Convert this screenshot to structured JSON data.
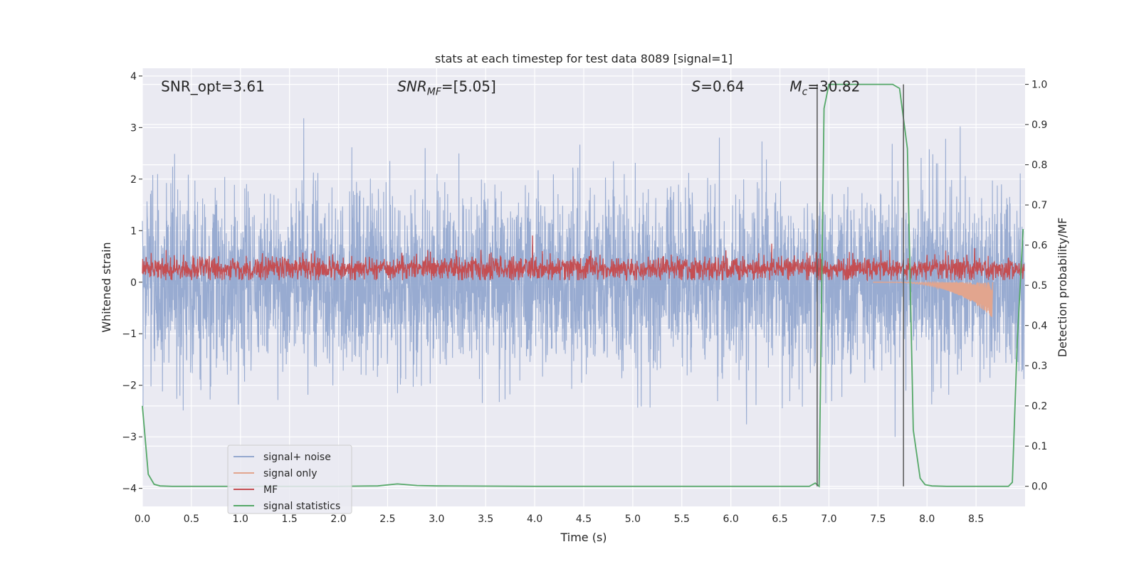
{
  "chart_data": {
    "type": "line",
    "title": "stats at each timestep for test data 8089 [signal=1]",
    "xlabel": "Time (s)",
    "ylabel": "Whitened strain",
    "ylabel_right": "Detection probability/MF",
    "xlim": [
      0,
      9.0
    ],
    "ylim": [
      -4.35,
      4.15
    ],
    "ylim_right": [
      -0.05,
      1.04
    ],
    "grid": true,
    "legend_position": "lower-left",
    "x_ticks": [
      0.0,
      0.5,
      1.0,
      1.5,
      2.0,
      2.5,
      3.0,
      3.5,
      4.0,
      4.5,
      5.0,
      5.5,
      6.0,
      6.5,
      7.0,
      7.5,
      8.0,
      8.5
    ],
    "x_tick_labels": [
      "0.0",
      "0.5",
      "1.0",
      "1.5",
      "2.0",
      "2.5",
      "3.0",
      "3.5",
      "4.0",
      "4.5",
      "5.0",
      "5.5",
      "6.0",
      "6.5",
      "7.0",
      "7.5",
      "8.0",
      "8.5"
    ],
    "y_ticks": [
      -4,
      -3,
      -2,
      -1,
      0,
      1,
      2,
      3,
      4
    ],
    "y_tick_labels": [
      "−4",
      "−3",
      "−2",
      "−1",
      "0",
      "1",
      "2",
      "3",
      "4"
    ],
    "y_right_ticks": [
      0.0,
      0.1,
      0.2,
      0.3,
      0.4,
      0.5,
      0.6,
      0.7,
      0.8,
      0.9,
      1.0
    ],
    "y_right_tick_labels": [
      "0.0",
      "0.1",
      "0.2",
      "0.3",
      "0.4",
      "0.5",
      "0.6",
      "0.7",
      "0.8",
      "0.9",
      "1.0"
    ],
    "annotations": [
      {
        "id": "snr-opt",
        "text": "SNR_opt=3.61"
      },
      {
        "id": "snr-mf",
        "text": "SNR_MF=[5.05]",
        "main": "SNR",
        "sub": "MF",
        "rest": "=[5.05]"
      },
      {
        "id": "s",
        "text": "S=0.64",
        "main": "S",
        "rest": "=0.64"
      },
      {
        "id": "mc",
        "text": "M_c=30.82",
        "main": "M",
        "sub": "c",
        "rest": "=30.82"
      }
    ],
    "annotation_x": [
      0.19,
      2.6,
      5.6,
      6.6
    ],
    "annotation_y": 3.8,
    "vertical_lines_x": [
      6.88,
      7.76
    ],
    "vertical_lines_yrange_right": [
      0.0,
      1.0
    ],
    "series": [
      {
        "name": "signal+ noise",
        "color": "#94a8cf",
        "axis": "left",
        "kind": "noise",
        "range": [
          -3.5,
          3.8
        ],
        "typical_std": 0.85
      },
      {
        "name": "signal only",
        "color": "#e2a58e",
        "axis": "left",
        "kind": "chirp",
        "start_x": 7.45,
        "end_x": 8.66,
        "peak": -0.75
      },
      {
        "name": "MF",
        "color": "#c44e52",
        "axis": "left",
        "kind": "mf",
        "range": [
          0.0,
          1.0
        ],
        "typical_mean": 0.27
      },
      {
        "name": "signal statistics",
        "color": "#55a868",
        "axis": "right",
        "x": [
          0.0,
          0.06,
          0.12,
          0.18,
          0.3,
          1.0,
          2.0,
          2.4,
          2.6,
          2.8,
          3.0,
          4.0,
          5.0,
          6.0,
          6.8,
          6.86,
          6.9,
          6.95,
          7.0,
          7.05,
          7.2,
          7.5,
          7.65,
          7.72,
          7.8,
          7.86,
          7.93,
          7.98,
          8.05,
          8.2,
          8.5,
          8.83,
          8.87,
          8.92,
          8.98
        ],
        "y": [
          0.2,
          0.03,
          0.005,
          0.001,
          0.0,
          0.0,
          0.0,
          0.001,
          0.006,
          0.002,
          0.001,
          0.0,
          0.0,
          0.0,
          0.0,
          0.008,
          0.0,
          0.94,
          1.0,
          1.0,
          1.0,
          1.0,
          1.0,
          0.99,
          0.84,
          0.14,
          0.02,
          0.004,
          0.001,
          0.0,
          0.0,
          0.0,
          0.01,
          0.36,
          0.64
        ]
      }
    ]
  }
}
